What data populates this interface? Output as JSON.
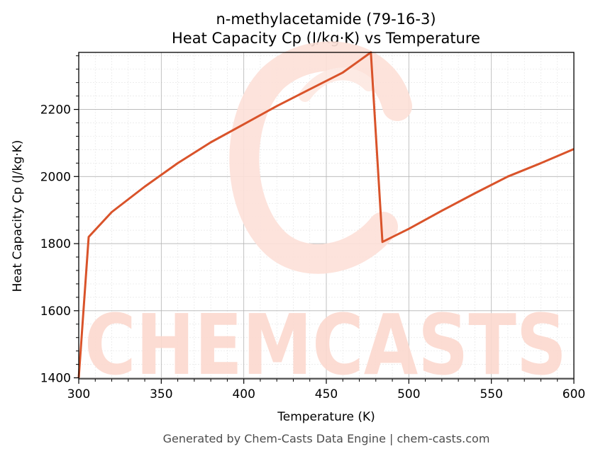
{
  "chart_data": {
    "type": "line",
    "title": "n-methylacetamide (79-16-3)",
    "subtitle": "Heat Capacity Cp (J/kg·K) vs Temperature",
    "xlabel": "Temperature (K)",
    "ylabel": "Heat Capacity Cp (J/kg·K)",
    "xlim": [
      300,
      600
    ],
    "ylim": [
      1397,
      2370
    ],
    "xticks": [
      300,
      350,
      400,
      450,
      500,
      550,
      600
    ],
    "yticks": [
      1400,
      1600,
      1800,
      2000,
      2200
    ],
    "grid": true,
    "line_color": "#d9532a",
    "series": [
      {
        "x": [
          300,
          306,
          320,
          340,
          360,
          380,
          400,
          420,
          440,
          460,
          477,
          484,
          500,
          520,
          540,
          560,
          580,
          600
        ],
        "y": [
          1400,
          1820,
          1894,
          1970,
          2040,
          2102,
          2156,
          2210,
          2260,
          2310,
          2370,
          1805,
          1844,
          1898,
          1950,
          2000,
          2040,
          2082
        ]
      }
    ]
  },
  "watermark": {
    "text": "CHEMCASTS",
    "color": "#fbd3c8"
  },
  "footer": "Generated by Chem-Casts Data Engine | chem-casts.com"
}
